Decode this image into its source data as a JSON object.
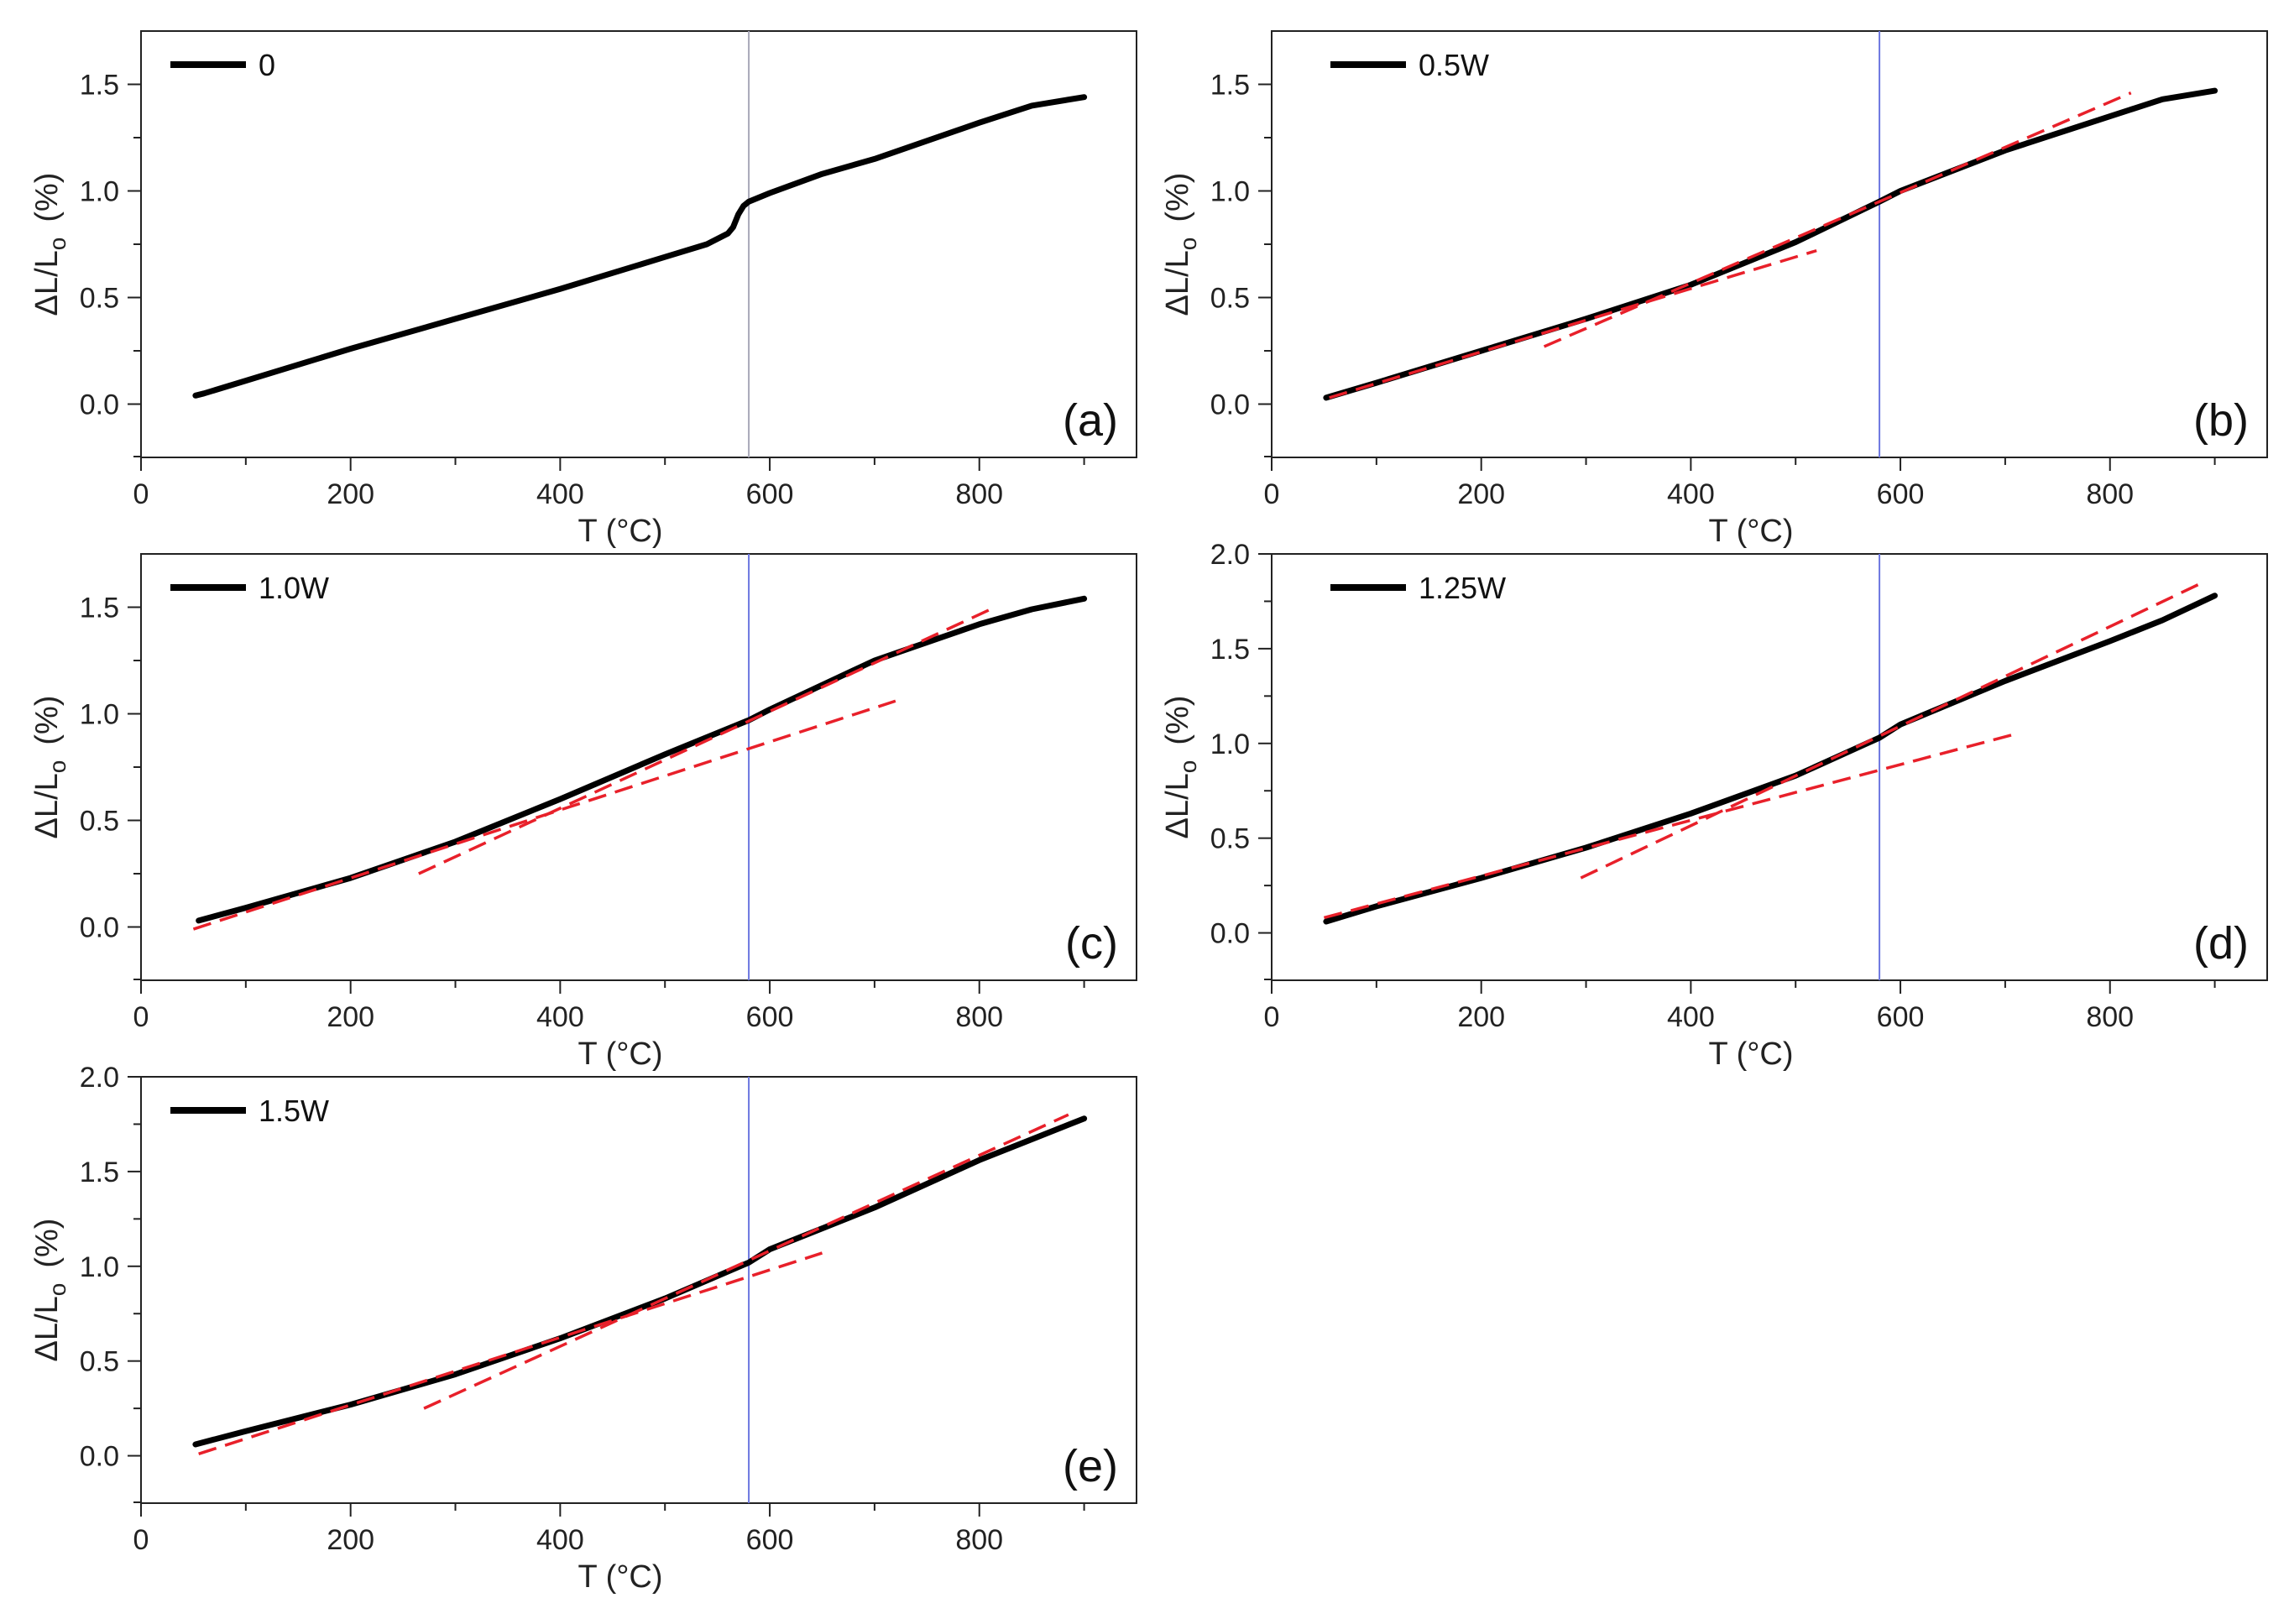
{
  "figure": {
    "xlabel": "T (°C)",
    "ylabel_main": "ΔL/L",
    "ylabel_sub": "o",
    "ylabel_unit": "(%)"
  },
  "chart_data": [
    {
      "type": "line",
      "panel": "(a)",
      "legend": "0",
      "xlim": [
        0,
        950
      ],
      "ylim": [
        -0.25,
        1.75
      ],
      "xticks": [
        0,
        200,
        400,
        600,
        800
      ],
      "yticks": [
        "0.0",
        "0.5",
        "1.0",
        "1.5"
      ],
      "vline_x": 580,
      "vline_color": "#a8a8b8",
      "series": [
        {
          "name": "0",
          "color": "#000000",
          "x": [
            52,
            60,
            100,
            200,
            300,
            400,
            500,
            540,
            560,
            565,
            570,
            575,
            580,
            600,
            650,
            700,
            800,
            850,
            900
          ],
          "y": [
            0.04,
            0.05,
            0.11,
            0.26,
            0.4,
            0.54,
            0.69,
            0.75,
            0.8,
            0.83,
            0.89,
            0.93,
            0.95,
            0.99,
            1.08,
            1.15,
            1.32,
            1.4,
            1.44
          ]
        }
      ],
      "fits": []
    },
    {
      "type": "line",
      "panel": "(b)",
      "legend": "0.5W",
      "xlim": [
        0,
        950
      ],
      "ylim": [
        -0.25,
        1.75
      ],
      "xticks": [
        0,
        200,
        400,
        600,
        800
      ],
      "yticks": [
        "0.0",
        "0.5",
        "1.0",
        "1.5"
      ],
      "vline_x": 580,
      "vline_color": "#6b76e0",
      "series": [
        {
          "name": "0.5W",
          "color": "#000000",
          "x": [
            52,
            100,
            200,
            300,
            400,
            500,
            580,
            600,
            700,
            800,
            850,
            900
          ],
          "y": [
            0.03,
            0.1,
            0.25,
            0.4,
            0.56,
            0.76,
            0.95,
            1.0,
            1.19,
            1.35,
            1.43,
            1.47
          ]
        }
      ],
      "fits": [
        {
          "x": [
            55,
            520
          ],
          "y": [
            0.03,
            0.72
          ]
        },
        {
          "x": [
            260,
            820
          ],
          "y": [
            0.27,
            1.46
          ]
        }
      ]
    },
    {
      "type": "line",
      "panel": "(c)",
      "legend": "1.0W",
      "xlim": [
        0,
        950
      ],
      "ylim": [
        -0.25,
        1.75
      ],
      "xticks": [
        0,
        200,
        400,
        600,
        800
      ],
      "yticks": [
        "0.0",
        "0.5",
        "1.0",
        "1.5"
      ],
      "vline_x": 580,
      "vline_color": "#6b76e0",
      "series": [
        {
          "name": "1.0W",
          "color": "#000000",
          "x": [
            55,
            100,
            200,
            300,
            400,
            500,
            580,
            600,
            700,
            800,
            850,
            900
          ],
          "y": [
            0.03,
            0.09,
            0.23,
            0.4,
            0.6,
            0.81,
            0.97,
            1.02,
            1.25,
            1.42,
            1.49,
            1.54
          ]
        }
      ],
      "fits": [
        {
          "x": [
            50,
            720
          ],
          "y": [
            -0.01,
            1.06
          ]
        },
        {
          "x": [
            265,
            815
          ],
          "y": [
            0.25,
            1.5
          ]
        }
      ]
    },
    {
      "type": "line",
      "panel": "(d)",
      "legend": "1.25W",
      "xlim": [
        0,
        950
      ],
      "ylim": [
        -0.25,
        2.0
      ],
      "xticks": [
        0,
        200,
        400,
        600,
        800
      ],
      "yticks": [
        "0.0",
        "0.5",
        "1.0",
        "1.5",
        "2.0"
      ],
      "vline_x": 580,
      "vline_color": "#6b76e0",
      "series": [
        {
          "name": "1.25W",
          "color": "#000000",
          "x": [
            52,
            100,
            200,
            300,
            400,
            500,
            580,
            600,
            700,
            800,
            850,
            900
          ],
          "y": [
            0.06,
            0.14,
            0.29,
            0.45,
            0.63,
            0.83,
            1.03,
            1.1,
            1.33,
            1.54,
            1.65,
            1.78
          ]
        }
      ],
      "fits": [
        {
          "x": [
            50,
            710
          ],
          "y": [
            0.08,
            1.05
          ]
        },
        {
          "x": [
            295,
            885
          ],
          "y": [
            0.29,
            1.84
          ]
        }
      ]
    },
    {
      "type": "line",
      "panel": "(e)",
      "legend": "1.5W",
      "xlim": [
        0,
        950
      ],
      "ylim": [
        -0.25,
        2.0
      ],
      "xticks": [
        0,
        200,
        400,
        600,
        800
      ],
      "yticks": [
        "0.0",
        "0.5",
        "1.0",
        "1.5",
        "2.0"
      ],
      "vline_x": 580,
      "vline_color": "#6b76e0",
      "series": [
        {
          "name": "1.5W",
          "color": "#000000",
          "x": [
            52,
            100,
            200,
            300,
            400,
            500,
            580,
            600,
            700,
            800,
            850,
            900
          ],
          "y": [
            0.06,
            0.13,
            0.27,
            0.43,
            0.62,
            0.83,
            1.02,
            1.09,
            1.31,
            1.56,
            1.67,
            1.78
          ]
        }
      ],
      "fits": [
        {
          "x": [
            55,
            650
          ],
          "y": [
            0.01,
            1.07
          ]
        },
        {
          "x": [
            270,
            885
          ],
          "y": [
            0.25,
            1.8
          ]
        }
      ]
    }
  ]
}
